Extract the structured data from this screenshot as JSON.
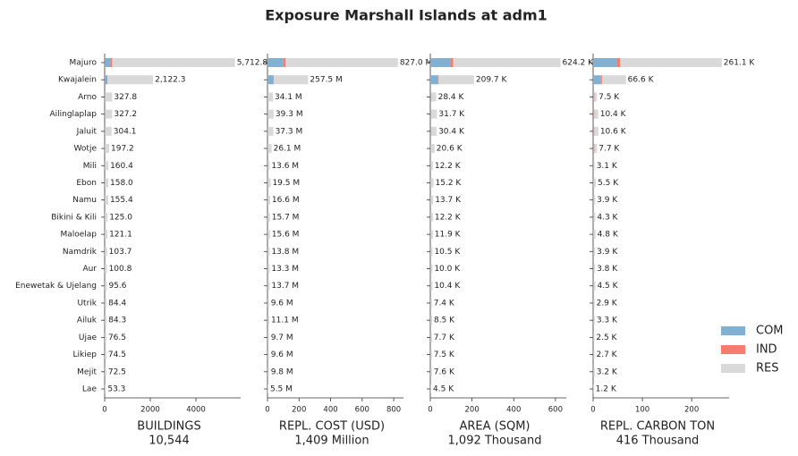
{
  "title": "Exposure Marshall Islands at adm1",
  "legend": {
    "names": [
      "COM",
      "IND",
      "RES"
    ],
    "colors": [
      "#82b0d2",
      "#f47d6e",
      "#d9d9d9"
    ]
  },
  "categories": [
    "Majuro",
    "Kwajalein",
    "Arno",
    "Ailinglaplap",
    "Jaluit",
    "Wotje",
    "Mili",
    "Ebon",
    "Namu",
    "Bikini & Kili",
    "Maloelap",
    "Namdrik",
    "Aur",
    "Enewetak & Ujelang",
    "Utrik",
    "Ailuk",
    "Ujae",
    "Likiep",
    "Mejit",
    "Lae"
  ],
  "chart_data": [
    {
      "type": "bar",
      "xlabel": "BUILDINGS",
      "total_label": "10,544",
      "xlim": [
        0,
        5960
      ],
      "xticks": [
        0,
        2000,
        4000
      ],
      "series": [
        {
          "values": [
            250,
            80,
            10,
            10,
            8,
            5,
            4,
            4,
            4,
            3,
            3,
            2,
            2,
            3,
            2,
            2,
            2,
            2,
            2,
            1
          ]
        },
        {
          "values": [
            80,
            40,
            3,
            3,
            3,
            2,
            1,
            1,
            1,
            1,
            1,
            1,
            1,
            1,
            1,
            1,
            1,
            1,
            1,
            0.5
          ]
        },
        {
          "values": [
            5382.8,
            2002.3,
            314.8,
            314.2,
            293.1,
            190.2,
            155.4,
            153.0,
            150.4,
            121.0,
            117.1,
            100.7,
            97.8,
            91.6,
            81.4,
            81.3,
            73.5,
            71.5,
            69.5,
            51.8
          ]
        }
      ],
      "value_labels": [
        "5,712.8",
        "2,122.3",
        "327.8",
        "327.2",
        "304.1",
        "197.2",
        "160.4",
        "158.0",
        "155.4",
        "125.0",
        "121.1",
        "103.7",
        "100.8",
        "95.6",
        "84.4",
        "84.3",
        "76.5",
        "74.5",
        "72.5",
        "53.3"
      ]
    },
    {
      "type": "bar",
      "xlabel": "REPL. COST (USD)",
      "total_label": "1,409 Million",
      "xlim": [
        0,
        862
      ],
      "xticks": [
        0,
        200,
        400,
        600,
        800
      ],
      "series": [
        {
          "values": [
            100,
            35,
            3,
            4,
            4,
            2,
            1,
            2,
            1,
            1,
            1,
            1,
            1,
            1,
            1,
            1,
            1,
            1,
            1,
            0.5
          ]
        },
        {
          "values": [
            15,
            5,
            0.5,
            0.5,
            0.5,
            0.3,
            0.2,
            0.2,
            0.2,
            0.2,
            0.2,
            0.2,
            0.2,
            0.2,
            0.1,
            0.1,
            0.1,
            0.1,
            0.1,
            0.1
          ]
        },
        {
          "values": [
            712.0,
            217.5,
            30.6,
            34.8,
            32.8,
            23.8,
            12.4,
            17.3,
            15.4,
            14.5,
            14.4,
            12.6,
            12.1,
            12.5,
            8.5,
            10.0,
            8.6,
            8.5,
            8.7,
            4.9
          ]
        }
      ],
      "value_labels": [
        "827.0 M",
        "257.5 M",
        "34.1 M",
        "39.3 M",
        "37.3 M",
        "26.1 M",
        "13.6 M",
        "19.5 M",
        "16.6 M",
        "15.7 M",
        "15.6 M",
        "13.8 M",
        "13.3 M",
        "13.7 M",
        "9.6 M",
        "11.1 M",
        "9.7 M",
        "9.6 M",
        "9.8 M",
        "5.5 M"
      ]
    },
    {
      "type": "bar",
      "xlabel": "AREA (SQM)",
      "total_label": "1,092 Thousand",
      "xlim": [
        0,
        652
      ],
      "xticks": [
        0,
        200,
        400,
        600
      ],
      "series": [
        {
          "values": [
            95,
            35,
            1,
            2,
            5,
            2,
            1,
            1,
            1,
            1,
            1,
            1,
            1,
            1,
            1,
            1,
            1,
            1,
            1,
            0.5
          ]
        },
        {
          "values": [
            15,
            5,
            3,
            2,
            0.5,
            0.5,
            0.3,
            0.3,
            0.3,
            0.3,
            0.3,
            0.3,
            0.3,
            0.3,
            0.2,
            0.2,
            0.2,
            0.2,
            0.2,
            0.1
          ]
        },
        {
          "values": [
            514.2,
            169.7,
            24.4,
            27.7,
            24.9,
            18.1,
            10.9,
            13.9,
            12.4,
            10.9,
            10.6,
            9.2,
            8.7,
            9.1,
            6.2,
            7.3,
            6.5,
            6.3,
            6.4,
            3.9
          ]
        }
      ],
      "value_labels": [
        "624.2 K",
        "209.7 K",
        "28.4 K",
        "31.7 K",
        "30.4 K",
        "20.6 K",
        "12.2 K",
        "15.2 K",
        "13.7 K",
        "12.2 K",
        "11.9 K",
        "10.5 K",
        "10.0 K",
        "10.4 K",
        "7.4 K",
        "8.5 K",
        "7.7 K",
        "7.5 K",
        "7.6 K",
        "4.5 K"
      ]
    },
    {
      "type": "bar",
      "xlabel": "REPL. CARBON TON",
      "total_label": "416 Thousand",
      "xlim": [
        0,
        276
      ],
      "xticks": [
        0,
        100,
        200
      ],
      "series": [
        {
          "values": [
            48,
            15,
            1,
            2,
            2,
            1,
            0.5,
            1,
            0.5,
            0.5,
            1,
            0.5,
            0.5,
            0.5,
            0.5,
            0.5,
            0.5,
            0.5,
            0.5,
            0.2
          ]
        },
        {
          "values": [
            7,
            3,
            1.5,
            0.5,
            0.5,
            1.5,
            0.2,
            0.2,
            0.2,
            0.2,
            0.2,
            0.2,
            0.2,
            0.2,
            0.1,
            0.1,
            0.1,
            0.1,
            0.1,
            0.1
          ]
        },
        {
          "values": [
            206.1,
            48.6,
            5.0,
            7.9,
            8.1,
            5.2,
            2.4,
            4.3,
            3.2,
            3.6,
            3.6,
            3.2,
            3.1,
            3.8,
            2.3,
            2.7,
            1.9,
            2.1,
            2.6,
            0.9
          ]
        }
      ],
      "value_labels": [
        "261.1 K",
        "66.6 K",
        "7.5 K",
        "10.4 K",
        "10.6 K",
        "7.7 K",
        "3.1 K",
        "5.5 K",
        "3.9 K",
        "4.3 K",
        "4.8 K",
        "3.9 K",
        "3.8 K",
        "4.5 K",
        "2.9 K",
        "3.3 K",
        "2.5 K",
        "2.7 K",
        "3.2 K",
        "1.2 K"
      ]
    }
  ]
}
